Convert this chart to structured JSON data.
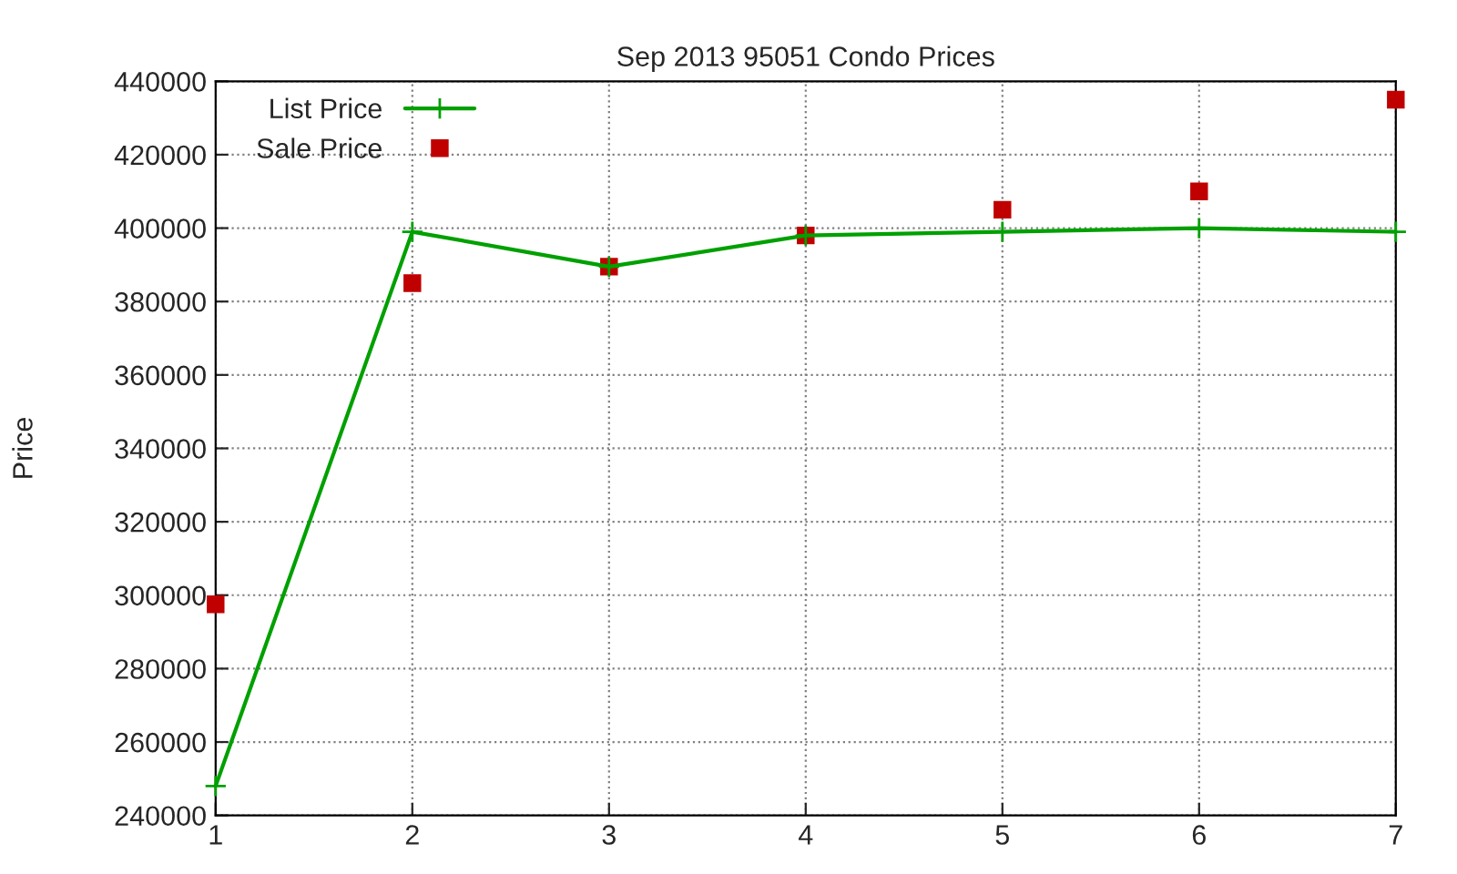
{
  "chart_data": {
    "type": "line",
    "title": "Sep 2013 95051 Condo Prices",
    "ylabel": "Price",
    "x": [
      1,
      2,
      3,
      4,
      5,
      6,
      7
    ],
    "series": [
      {
        "name": "List Price",
        "color": "#00a000",
        "marker": "cross",
        "values": [
          248000,
          399000,
          389500,
          398000,
          399000,
          400000,
          399000
        ]
      },
      {
        "name": "Sale Price",
        "color": "#c00000",
        "type": "scatter",
        "marker": "square",
        "values": [
          297500,
          385000,
          389500,
          398000,
          405000,
          410000,
          435000
        ]
      }
    ],
    "xlim": [
      1,
      7
    ],
    "xticks": [
      1,
      2,
      3,
      4,
      5,
      6,
      7
    ],
    "ylim": [
      240000,
      440000
    ],
    "yticks": [
      240000,
      260000,
      280000,
      300000,
      320000,
      340000,
      360000,
      380000,
      400000,
      420000,
      440000
    ],
    "grid": true,
    "legend": "top left"
  }
}
